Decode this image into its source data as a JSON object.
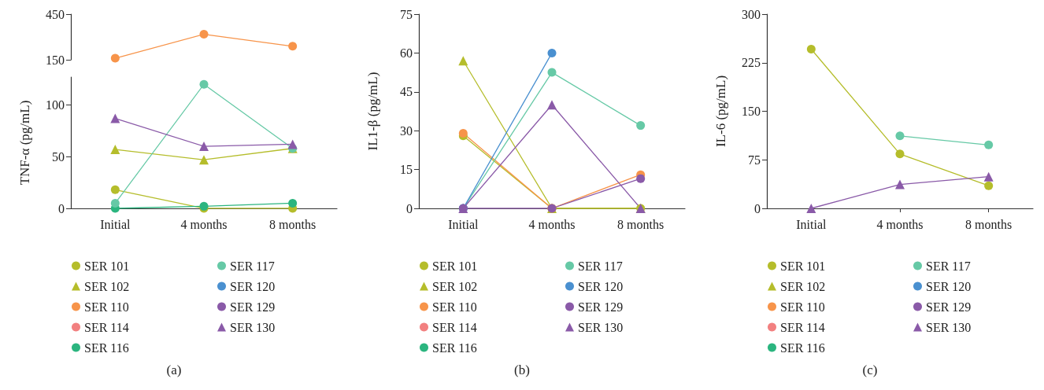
{
  "chart_data": [
    {
      "type": "line",
      "ylim": [
        150,
        450
      ],
      "yticks": [
        150,
        450
      ],
      "tick_labels": "y",
      "series": [
        {
          "color": "#f7944a",
          "marker": "circle",
          "values": [
            160,
            318,
            239
          ]
        }
      ]
    },
    {
      "type": "line",
      "ylabel": "TNF-α (pg/mL)",
      "categories": [
        "Initial",
        "4 months",
        "8 months"
      ],
      "ylim": [
        0,
        127
      ],
      "yticks": [
        0,
        50,
        100
      ],
      "legend": "bottom",
      "annotations": [
        "(a)"
      ],
      "series": [
        {
          "name": "SER 101",
          "color": "#b5bd2b",
          "marker": "circle",
          "values": [
            18,
            0,
            0
          ]
        },
        {
          "name": "SER 102",
          "color": "#b5bd2b",
          "marker": "triangle",
          "values": [
            57,
            47,
            58
          ]
        },
        {
          "name": "SER 110",
          "color": "#f7944a",
          "marker": "circle",
          "values": [
            null,
            null,
            null
          ]
        },
        {
          "name": "SER 114",
          "color": "#f28080",
          "marker": "circle",
          "values": [
            null,
            null,
            null
          ]
        },
        {
          "name": "SER 116",
          "color": "#2bb57f",
          "marker": "circle",
          "values": [
            0,
            2,
            5
          ]
        },
        {
          "name": "SER 117",
          "color": "#66c9a6",
          "marker": "circle",
          "values": [
            5,
            120,
            58
          ]
        },
        {
          "name": "SER 120",
          "color": "#4a90d0",
          "marker": "circle",
          "values": [
            null,
            null,
            null
          ]
        },
        {
          "name": "SER 129",
          "color": "#8a5aa8",
          "marker": "circle",
          "values": [
            null,
            null,
            null
          ]
        },
        {
          "name": "SER 130",
          "color": "#8a5aa8",
          "marker": "triangle",
          "values": [
            87,
            60,
            62
          ]
        }
      ]
    },
    {
      "type": "line",
      "ylabel": "IL1-β (pg/mL)",
      "categories": [
        "Initial",
        "4 months",
        "8 months"
      ],
      "ylim": [
        0,
        75
      ],
      "yticks": [
        0,
        15,
        30,
        45,
        60,
        75
      ],
      "legend": "bottom",
      "annotations": [
        "(b)"
      ],
      "series": [
        {
          "name": "SER 101",
          "color": "#b5bd2b",
          "marker": "circle",
          "values": [
            28,
            0,
            0
          ]
        },
        {
          "name": "SER 102",
          "color": "#b5bd2b",
          "marker": "triangle",
          "values": [
            57,
            0,
            0
          ]
        },
        {
          "name": "SER 110",
          "color": "#f7944a",
          "marker": "circle",
          "values": [
            29,
            0,
            13
          ]
        },
        {
          "name": "SER 114",
          "color": "#f28080",
          "marker": "circle",
          "values": [
            null,
            null,
            null
          ]
        },
        {
          "name": "SER 116",
          "color": "#2bb57f",
          "marker": "circle",
          "values": [
            null,
            null,
            null
          ]
        },
        {
          "name": "SER 117",
          "color": "#66c9a6",
          "marker": "circle",
          "values": [
            0,
            52.5,
            32
          ]
        },
        {
          "name": "SER 120",
          "color": "#4a90d0",
          "marker": "circle",
          "values": [
            0,
            60,
            null
          ]
        },
        {
          "name": "SER 129",
          "color": "#8a5aa8",
          "marker": "circle",
          "values": [
            0,
            0,
            11.5
          ]
        },
        {
          "name": "SER 130",
          "color": "#8a5aa8",
          "marker": "triangle",
          "values": [
            0,
            40,
            0
          ]
        }
      ]
    },
    {
      "type": "line",
      "ylabel": "IL-6 (pg/mL)",
      "categories": [
        "Initial",
        "4 months",
        "8 months"
      ],
      "ylim": [
        0,
        300
      ],
      "yticks": [
        0,
        75,
        150,
        225,
        300
      ],
      "legend": "bottom",
      "annotations": [
        "(c)"
      ],
      "series": [
        {
          "name": "SER 101",
          "color": "#b5bd2b",
          "marker": "circle",
          "values": [
            246,
            84,
            35
          ]
        },
        {
          "name": "SER 102",
          "color": "#b5bd2b",
          "marker": "triangle",
          "values": [
            null,
            null,
            null
          ]
        },
        {
          "name": "SER 110",
          "color": "#f7944a",
          "marker": "circle",
          "values": [
            null,
            null,
            null
          ]
        },
        {
          "name": "SER 114",
          "color": "#f28080",
          "marker": "circle",
          "values": [
            null,
            null,
            null
          ]
        },
        {
          "name": "SER 116",
          "color": "#2bb57f",
          "marker": "circle",
          "values": [
            null,
            null,
            null
          ]
        },
        {
          "name": "SER 117",
          "color": "#66c9a6",
          "marker": "circle",
          "values": [
            null,
            112,
            98
          ]
        },
        {
          "name": "SER 120",
          "color": "#4a90d0",
          "marker": "circle",
          "values": [
            null,
            null,
            null
          ]
        },
        {
          "name": "SER 129",
          "color": "#8a5aa8",
          "marker": "circle",
          "values": [
            null,
            null,
            null
          ]
        },
        {
          "name": "SER 130",
          "color": "#8a5aa8",
          "marker": "triangle",
          "values": [
            0,
            37,
            49
          ]
        }
      ]
    }
  ]
}
